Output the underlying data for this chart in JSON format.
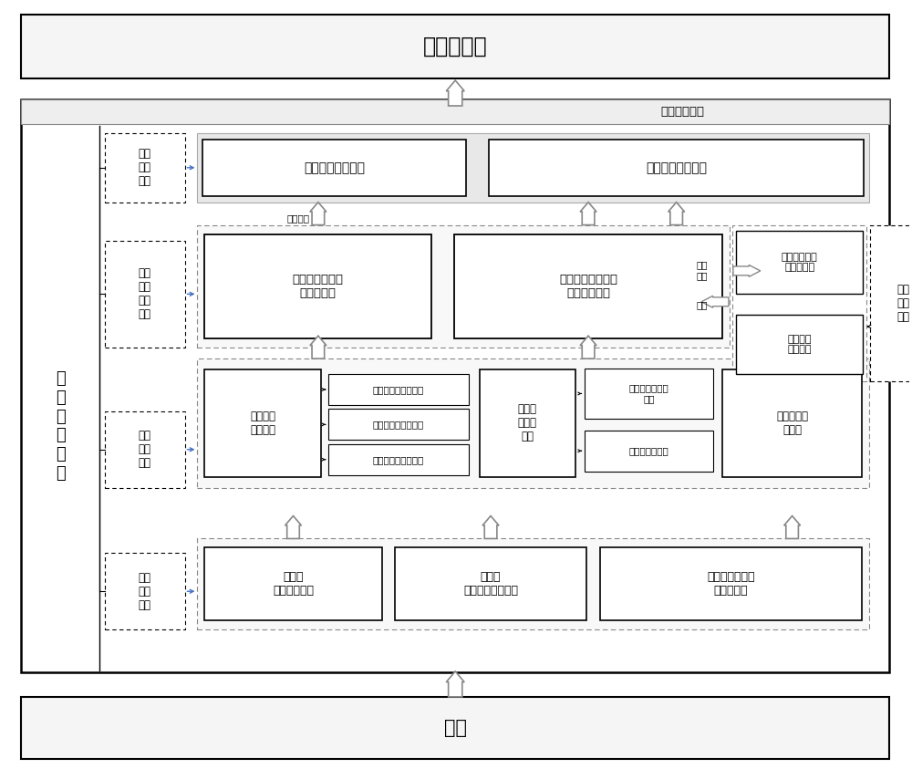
{
  "title_top": "医生、患者",
  "title_bottom": "患者",
  "label_db": "数\n据\n库\n服\n务\n器",
  "label_classify_match": "根据分类匹配",
  "fenzhen_shuchu": "分诊\n输出\n系统",
  "huanzhe_fenlei": "患者\n疾病\n分类\n系统",
  "shuju_chuli": "数据\n处理\n系统",
  "shuju_caiji": "数据\n采集\n系统",
  "fenzhen_peiyi": "分诊匹配医生单元",
  "fenzhen_fasong": "分诊信号发送单元",
  "juanji": "卷积神经网络数\n据分析单元",
  "changduan": "长短记忆神经网络\n数据分析单元",
  "xindian": "心电信号\n处理单元",
  "yundong": "运动波\n形处理\n单元",
  "wenben": "文本信息处\n理单元",
  "dianci": "电磁干扰过滤子单元",
  "gongpin": "工频干扰过滤子单元",
  "jixian": "基线漂移处理子单元",
  "yundong_rec": "运动波形识别子\n单元",
  "ganrao": "干扰过滤子单元",
  "fenlei_fankui": "分类结果反馈\n与评定单元",
  "fenlei_jiankong": "分类数据\n监管单元",
  "fenzhen_jianguan": "分诊\n监管\n系统",
  "kechuandai": "可穿戴\n心电采集终端",
  "huanzheduan": "患者端\n症状信息采集终端",
  "rengong": "人工客服电话数\n据采集终端",
  "fenlei_jieguo": "分类结果",
  "fenlei_jieguo2": "分类\n结果",
  "fankui": "反馈"
}
